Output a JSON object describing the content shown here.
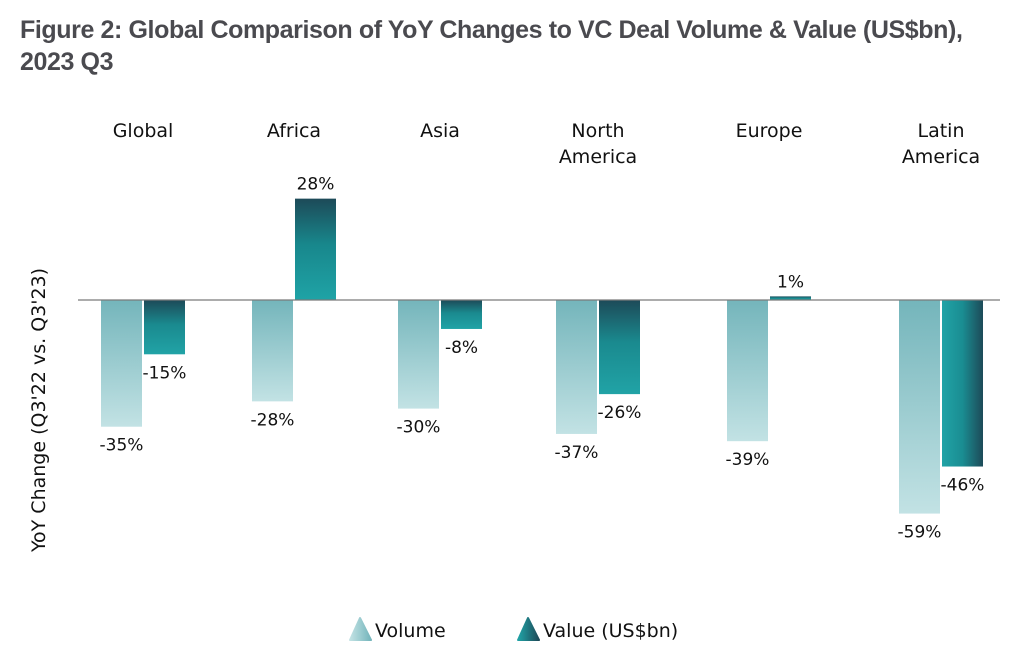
{
  "chart_data": {
    "type": "bar",
    "title": "Figure 2: Global Comparison of YoY Changes to VC Deal Volume & Value (US$bn), 2023 Q3",
    "title_lines": [
      "Figure 2: Global Comparison of YoY Changes to VC Deal Volume & Value (US$bn),",
      "2023 Q3"
    ],
    "categories": [
      [
        "Global"
      ],
      [
        "Africa"
      ],
      [
        "Asia"
      ],
      [
        "North",
        "America"
      ],
      [
        "Europe"
      ],
      [
        "Latin",
        "America"
      ]
    ],
    "category_names": [
      "Global",
      "Africa",
      "Asia",
      "North America",
      "Europe",
      "Latin America"
    ],
    "series": [
      {
        "name": "Volume",
        "values": [
          -35,
          -28,
          -30,
          -37,
          -39,
          -59
        ],
        "labels": [
          "-35%",
          "-28%",
          "-30%",
          "-37%",
          "-39%",
          "-59%"
        ],
        "color_top": "#74b5bb",
        "color_bottom": "#c2e2e4"
      },
      {
        "name": "Value (US$bn)",
        "values": [
          -15,
          28,
          -8,
          -26,
          1,
          -46
        ],
        "labels": [
          "-15%",
          "28%",
          "-8%",
          "-26%",
          "1%",
          "-46%"
        ],
        "color_dark": "#1d4a58",
        "color_light": "#1fa3a6"
      }
    ],
    "xlabel": "",
    "ylabel": "YoY Change (Q3'22 vs. Q3'23)",
    "ylim": [
      -65,
      35
    ],
    "grid": false,
    "zero_line": true,
    "legend_position": "bottom-center",
    "category_label_position": "top"
  }
}
